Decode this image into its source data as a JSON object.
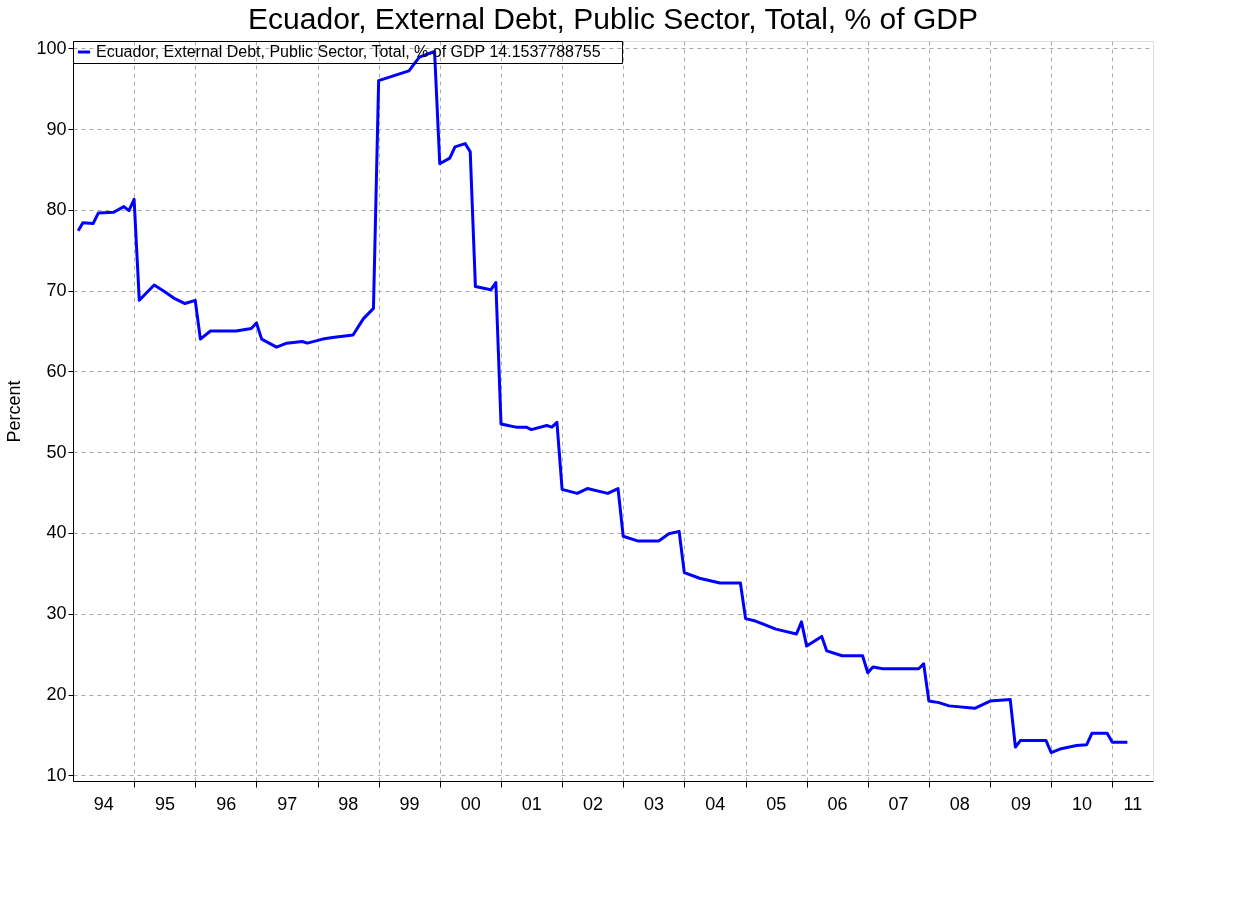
{
  "chart_data": {
    "type": "line",
    "title": "Ecuador, External Debt, Public Sector, Total, % of GDP",
    "ylabel": "Percent",
    "annotations": [
      "14.1537788755"
    ],
    "x": [
      "1994-02",
      "1994-03",
      "1994-05",
      "1994-06",
      "1994-09",
      "1994-11",
      "1994-12",
      "1995-01",
      "1995-02",
      "1995-05",
      "1995-07",
      "1995-09",
      "1995-11",
      "1996-01",
      "1996-02",
      "1996-04",
      "1996-09",
      "1996-12",
      "1997-01",
      "1997-02",
      "1997-05",
      "1997-07",
      "1997-10",
      "1997-11",
      "1998-02",
      "1998-04",
      "1998-08",
      "1998-10",
      "1998-12",
      "1999-01",
      "1999-05",
      "1999-07",
      "1999-09",
      "1999-12",
      "2000-01",
      "2000-03",
      "2000-04",
      "2000-06",
      "2000-07",
      "2000-08",
      "2000-11",
      "2000-12",
      "2001-01",
      "2001-04",
      "2001-06",
      "2001-07",
      "2001-10",
      "2001-11",
      "2001-12",
      "2002-01",
      "2002-04",
      "2002-06",
      "2002-10",
      "2002-12",
      "2003-01",
      "2003-04",
      "2003-08",
      "2003-10",
      "2003-12",
      "2004-01",
      "2004-04",
      "2004-08",
      "2004-12",
      "2005-01",
      "2005-03",
      "2005-07",
      "2005-11",
      "2005-12",
      "2006-01",
      "2006-04",
      "2006-05",
      "2006-08",
      "2006-12",
      "2007-01",
      "2007-02",
      "2007-04",
      "2007-11",
      "2007-12",
      "2008-01",
      "2008-03",
      "2008-05",
      "2008-10",
      "2009-01",
      "2009-05",
      "2009-06",
      "2009-07",
      "2009-12",
      "2010-01",
      "2010-03",
      "2010-06",
      "2010-08",
      "2010-09",
      "2010-12",
      "2011-01",
      "2011-04"
    ],
    "series": [
      {
        "name": "Ecuador, External Debt, Public Sector, Total, % of GDP",
        "color": "#0000ff",
        "values": [
          77.4,
          78.4,
          78.3,
          79.6,
          79.7,
          80.4,
          79.9,
          81.3,
          68.8,
          70.7,
          69.9,
          69.0,
          68.4,
          68.8,
          64.0,
          65.0,
          65.0,
          65.3,
          66.0,
          64.0,
          63.0,
          63.5,
          63.7,
          63.5,
          64.0,
          64.2,
          64.5,
          66.5,
          67.8,
          96.0,
          96.8,
          97.2,
          98.9,
          99.6,
          85.7,
          86.4,
          87.8,
          88.2,
          87.2,
          70.5,
          70.1,
          71.0,
          53.5,
          53.1,
          53.1,
          52.8,
          53.3,
          53.1,
          53.7,
          45.4,
          44.9,
          45.5,
          44.9,
          45.5,
          39.6,
          39.0,
          39.0,
          39.9,
          40.2,
          35.1,
          34.4,
          33.8,
          33.8,
          29.4,
          29.1,
          28.1,
          27.5,
          29.0,
          26.0,
          27.2,
          25.4,
          24.8,
          24.8,
          22.7,
          23.4,
          23.2,
          23.2,
          23.8,
          19.2,
          19.0,
          18.6,
          18.3,
          19.2,
          19.4,
          13.5,
          14.3,
          14.3,
          12.8,
          13.3,
          13.7,
          13.8,
          15.2,
          15.2,
          14.1,
          14.1
        ]
      }
    ],
    "xlim": [
      "1994-01",
      "2011-09"
    ],
    "xticks": [
      {
        "value": "1994-07",
        "label": "94"
      },
      {
        "value": "1995",
        "label": null
      },
      {
        "value": "1995-07",
        "label": "95"
      },
      {
        "value": "1996",
        "label": null
      },
      {
        "value": "1996-07",
        "label": "96"
      },
      {
        "value": "1997",
        "label": null
      },
      {
        "value": "1997-07",
        "label": "97"
      },
      {
        "value": "1998",
        "label": null
      },
      {
        "value": "1998-07",
        "label": "98"
      },
      {
        "value": "1999",
        "label": null
      },
      {
        "value": "1999-07",
        "label": "99"
      },
      {
        "value": "2000",
        "label": null
      },
      {
        "value": "2000-07",
        "label": "00"
      },
      {
        "value": "2001",
        "label": null
      },
      {
        "value": "2001-07",
        "label": "01"
      },
      {
        "value": "2002",
        "label": null
      },
      {
        "value": "2002-07",
        "label": "02"
      },
      {
        "value": "2003",
        "label": null
      },
      {
        "value": "2003-07",
        "label": "03"
      },
      {
        "value": "2004",
        "label": null
      },
      {
        "value": "2004-07",
        "label": "04"
      },
      {
        "value": "2005",
        "label": null
      },
      {
        "value": "2005-07",
        "label": "05"
      },
      {
        "value": "2006",
        "label": null
      },
      {
        "value": "2006-07",
        "label": "06"
      },
      {
        "value": "2007",
        "label": null
      },
      {
        "value": "2007-07",
        "label": "07"
      },
      {
        "value": "2008",
        "label": null
      },
      {
        "value": "2008-07",
        "label": "08"
      },
      {
        "value": "2009",
        "label": null
      },
      {
        "value": "2009-07",
        "label": "09"
      },
      {
        "value": "2010",
        "label": null
      },
      {
        "value": "2010-07",
        "label": "10"
      },
      {
        "value": "2011",
        "label": null
      },
      {
        "value": "2011-05",
        "label": "11"
      }
    ],
    "ylim": [
      9.3,
      100.9
    ],
    "yticks": [
      10,
      20,
      30,
      40,
      50,
      60,
      70,
      80,
      90,
      100
    ],
    "grid": true,
    "legend": "top left",
    "marker": "none",
    "line_style": "solid"
  }
}
